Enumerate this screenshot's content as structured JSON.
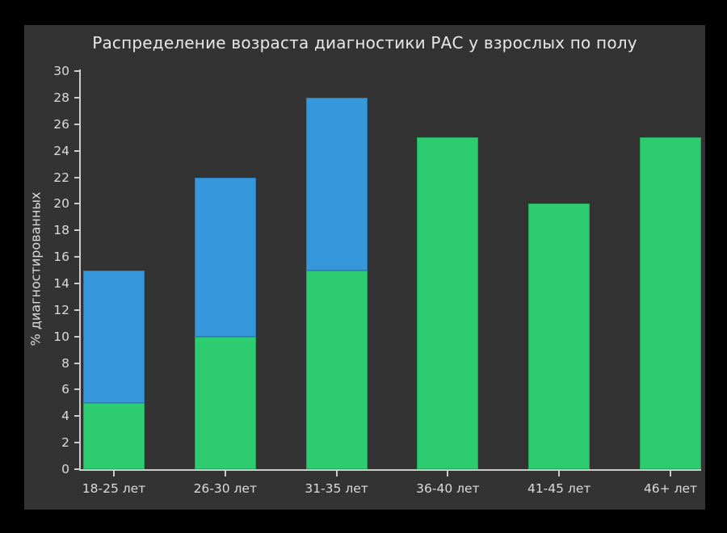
{
  "chart_data": {
    "type": "bar",
    "stacked": true,
    "title": "Распределение возраста диагностики РАС у взрослых по полу",
    "xlabel": "",
    "ylabel": "% диагностированных",
    "categories": [
      "18-25 лет",
      "26-30 лет",
      "31-35 лет",
      "36-40 лет",
      "41-45 лет",
      "46+ лет"
    ],
    "series": [
      {
        "name": "series-green",
        "color": "#2ecc71",
        "values": [
          5,
          10,
          15,
          25,
          20,
          25
        ]
      },
      {
        "name": "series-blue",
        "color": "#3498db",
        "values": [
          10,
          12,
          13,
          0,
          0,
          0
        ]
      }
    ],
    "stack_totals": [
      15,
      22,
      28,
      25,
      20,
      25
    ],
    "ylim": [
      0,
      30
    ],
    "yticks": [
      0,
      2,
      4,
      6,
      8,
      10,
      12,
      14,
      16,
      18,
      20,
      22,
      24,
      26,
      28,
      30
    ],
    "grid": false,
    "legend": "none"
  },
  "colors": {
    "outer_background": "#000000",
    "plot_background": "#333333",
    "axis": "#cccccc",
    "text": "#dcdcdc",
    "title_text": "#e8e8e8",
    "bar_green": "#2ecc71",
    "bar_blue": "#3498db"
  }
}
